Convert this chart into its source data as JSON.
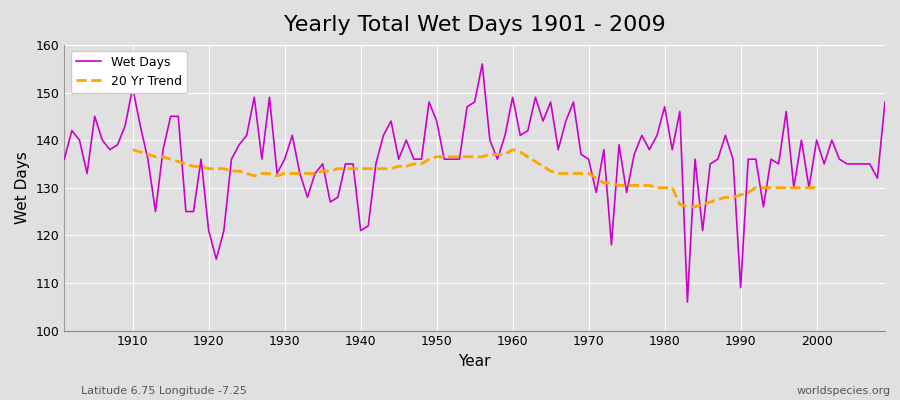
{
  "title": "Yearly Total Wet Days 1901 - 2009",
  "xlabel": "Year",
  "ylabel": "Wet Days",
  "subtitle": "Latitude 6.75 Longitude -7.25",
  "watermark": "worldspecies.org",
  "bg_color": "#e0e0e0",
  "plot_bg_color": "#e0e0e0",
  "wet_days_color": "#cc00cc",
  "trend_color": "#ffa500",
  "ylim": [
    100,
    160
  ],
  "xlim": [
    1901,
    2009
  ],
  "years": [
    1901,
    1902,
    1903,
    1904,
    1905,
    1906,
    1907,
    1908,
    1909,
    1910,
    1911,
    1912,
    1913,
    1914,
    1915,
    1916,
    1917,
    1918,
    1919,
    1920,
    1921,
    1922,
    1923,
    1924,
    1925,
    1926,
    1927,
    1928,
    1929,
    1930,
    1931,
    1932,
    1933,
    1934,
    1935,
    1936,
    1937,
    1938,
    1939,
    1940,
    1941,
    1942,
    1943,
    1944,
    1945,
    1946,
    1947,
    1948,
    1949,
    1950,
    1951,
    1952,
    1953,
    1954,
    1955,
    1956,
    1957,
    1958,
    1959,
    1960,
    1961,
    1962,
    1963,
    1964,
    1965,
    1966,
    1967,
    1968,
    1969,
    1970,
    1971,
    1972,
    1973,
    1974,
    1975,
    1976,
    1977,
    1978,
    1979,
    1980,
    1981,
    1982,
    1983,
    1984,
    1985,
    1986,
    1987,
    1988,
    1989,
    1990,
    1991,
    1992,
    1993,
    1994,
    1995,
    1996,
    1997,
    1998,
    1999,
    2000,
    2001,
    2002,
    2003,
    2004,
    2005,
    2006,
    2007,
    2008,
    2009
  ],
  "wet_days": [
    136,
    142,
    140,
    133,
    145,
    140,
    138,
    139,
    143,
    151,
    143,
    136,
    125,
    138,
    145,
    145,
    125,
    125,
    136,
    121,
    115,
    121,
    136,
    139,
    141,
    149,
    136,
    149,
    133,
    136,
    141,
    133,
    128,
    133,
    135,
    127,
    128,
    135,
    135,
    121,
    122,
    135,
    141,
    144,
    136,
    140,
    136,
    136,
    148,
    144,
    136,
    136,
    136,
    147,
    148,
    156,
    140,
    136,
    141,
    149,
    141,
    142,
    149,
    144,
    148,
    138,
    144,
    148,
    137,
    136,
    129,
    138,
    118,
    139,
    129,
    137,
    141,
    138,
    141,
    147,
    138,
    146,
    106,
    136,
    121,
    135,
    136,
    141,
    136,
    109,
    136,
    136,
    126,
    136,
    135,
    146,
    130,
    140,
    130,
    140,
    135,
    140,
    136,
    135,
    135,
    135,
    135,
    132,
    148
  ],
  "trend_years": [
    1910,
    1911,
    1912,
    1913,
    1914,
    1915,
    1916,
    1917,
    1918,
    1919,
    1920,
    1921,
    1922,
    1923,
    1924,
    1925,
    1926,
    1927,
    1928,
    1929,
    1930,
    1931,
    1932,
    1933,
    1934,
    1935,
    1936,
    1937,
    1938,
    1939,
    1940,
    1941,
    1942,
    1943,
    1944,
    1945,
    1946,
    1947,
    1948,
    1949,
    1950,
    1951,
    1952,
    1953,
    1954,
    1955,
    1956,
    1957,
    1958,
    1959,
    1960,
    1961,
    1962,
    1963,
    1964,
    1965,
    1966,
    1967,
    1968,
    1969,
    1970,
    1971,
    1972,
    1973,
    1974,
    1975,
    1976,
    1977,
    1978,
    1979,
    1980,
    1981,
    1982,
    1983,
    1984,
    1985,
    1986,
    1987,
    1988,
    1989,
    1990,
    1991,
    1992,
    1993,
    1994,
    1995,
    1996,
    1997,
    1998,
    1999,
    2000
  ],
  "trend_values": [
    138.0,
    137.5,
    137.0,
    136.5,
    136.5,
    136.0,
    135.5,
    135.0,
    134.5,
    134.5,
    134.0,
    134.0,
    134.0,
    133.5,
    133.5,
    133.0,
    132.5,
    133.0,
    133.0,
    132.5,
    133.0,
    133.0,
    133.0,
    133.0,
    133.0,
    133.5,
    133.5,
    134.0,
    134.0,
    134.0,
    134.0,
    134.0,
    134.0,
    134.0,
    134.0,
    134.5,
    134.5,
    135.0,
    135.0,
    136.0,
    136.5,
    136.5,
    136.5,
    136.5,
    136.5,
    136.5,
    136.5,
    137.0,
    137.0,
    137.0,
    138.0,
    137.5,
    136.5,
    135.5,
    134.5,
    133.5,
    133.0,
    133.0,
    133.0,
    133.0,
    133.0,
    132.0,
    131.0,
    131.0,
    130.5,
    130.5,
    130.5,
    130.5,
    130.5,
    130.0,
    130.0,
    130.0,
    126.5,
    126.0,
    126.0,
    126.5,
    127.0,
    127.5,
    128.0,
    128.0,
    128.5,
    129.0,
    130.0,
    130.0,
    130.0,
    130.0,
    130.0,
    130.0,
    130.0,
    130.0,
    130.0
  ]
}
